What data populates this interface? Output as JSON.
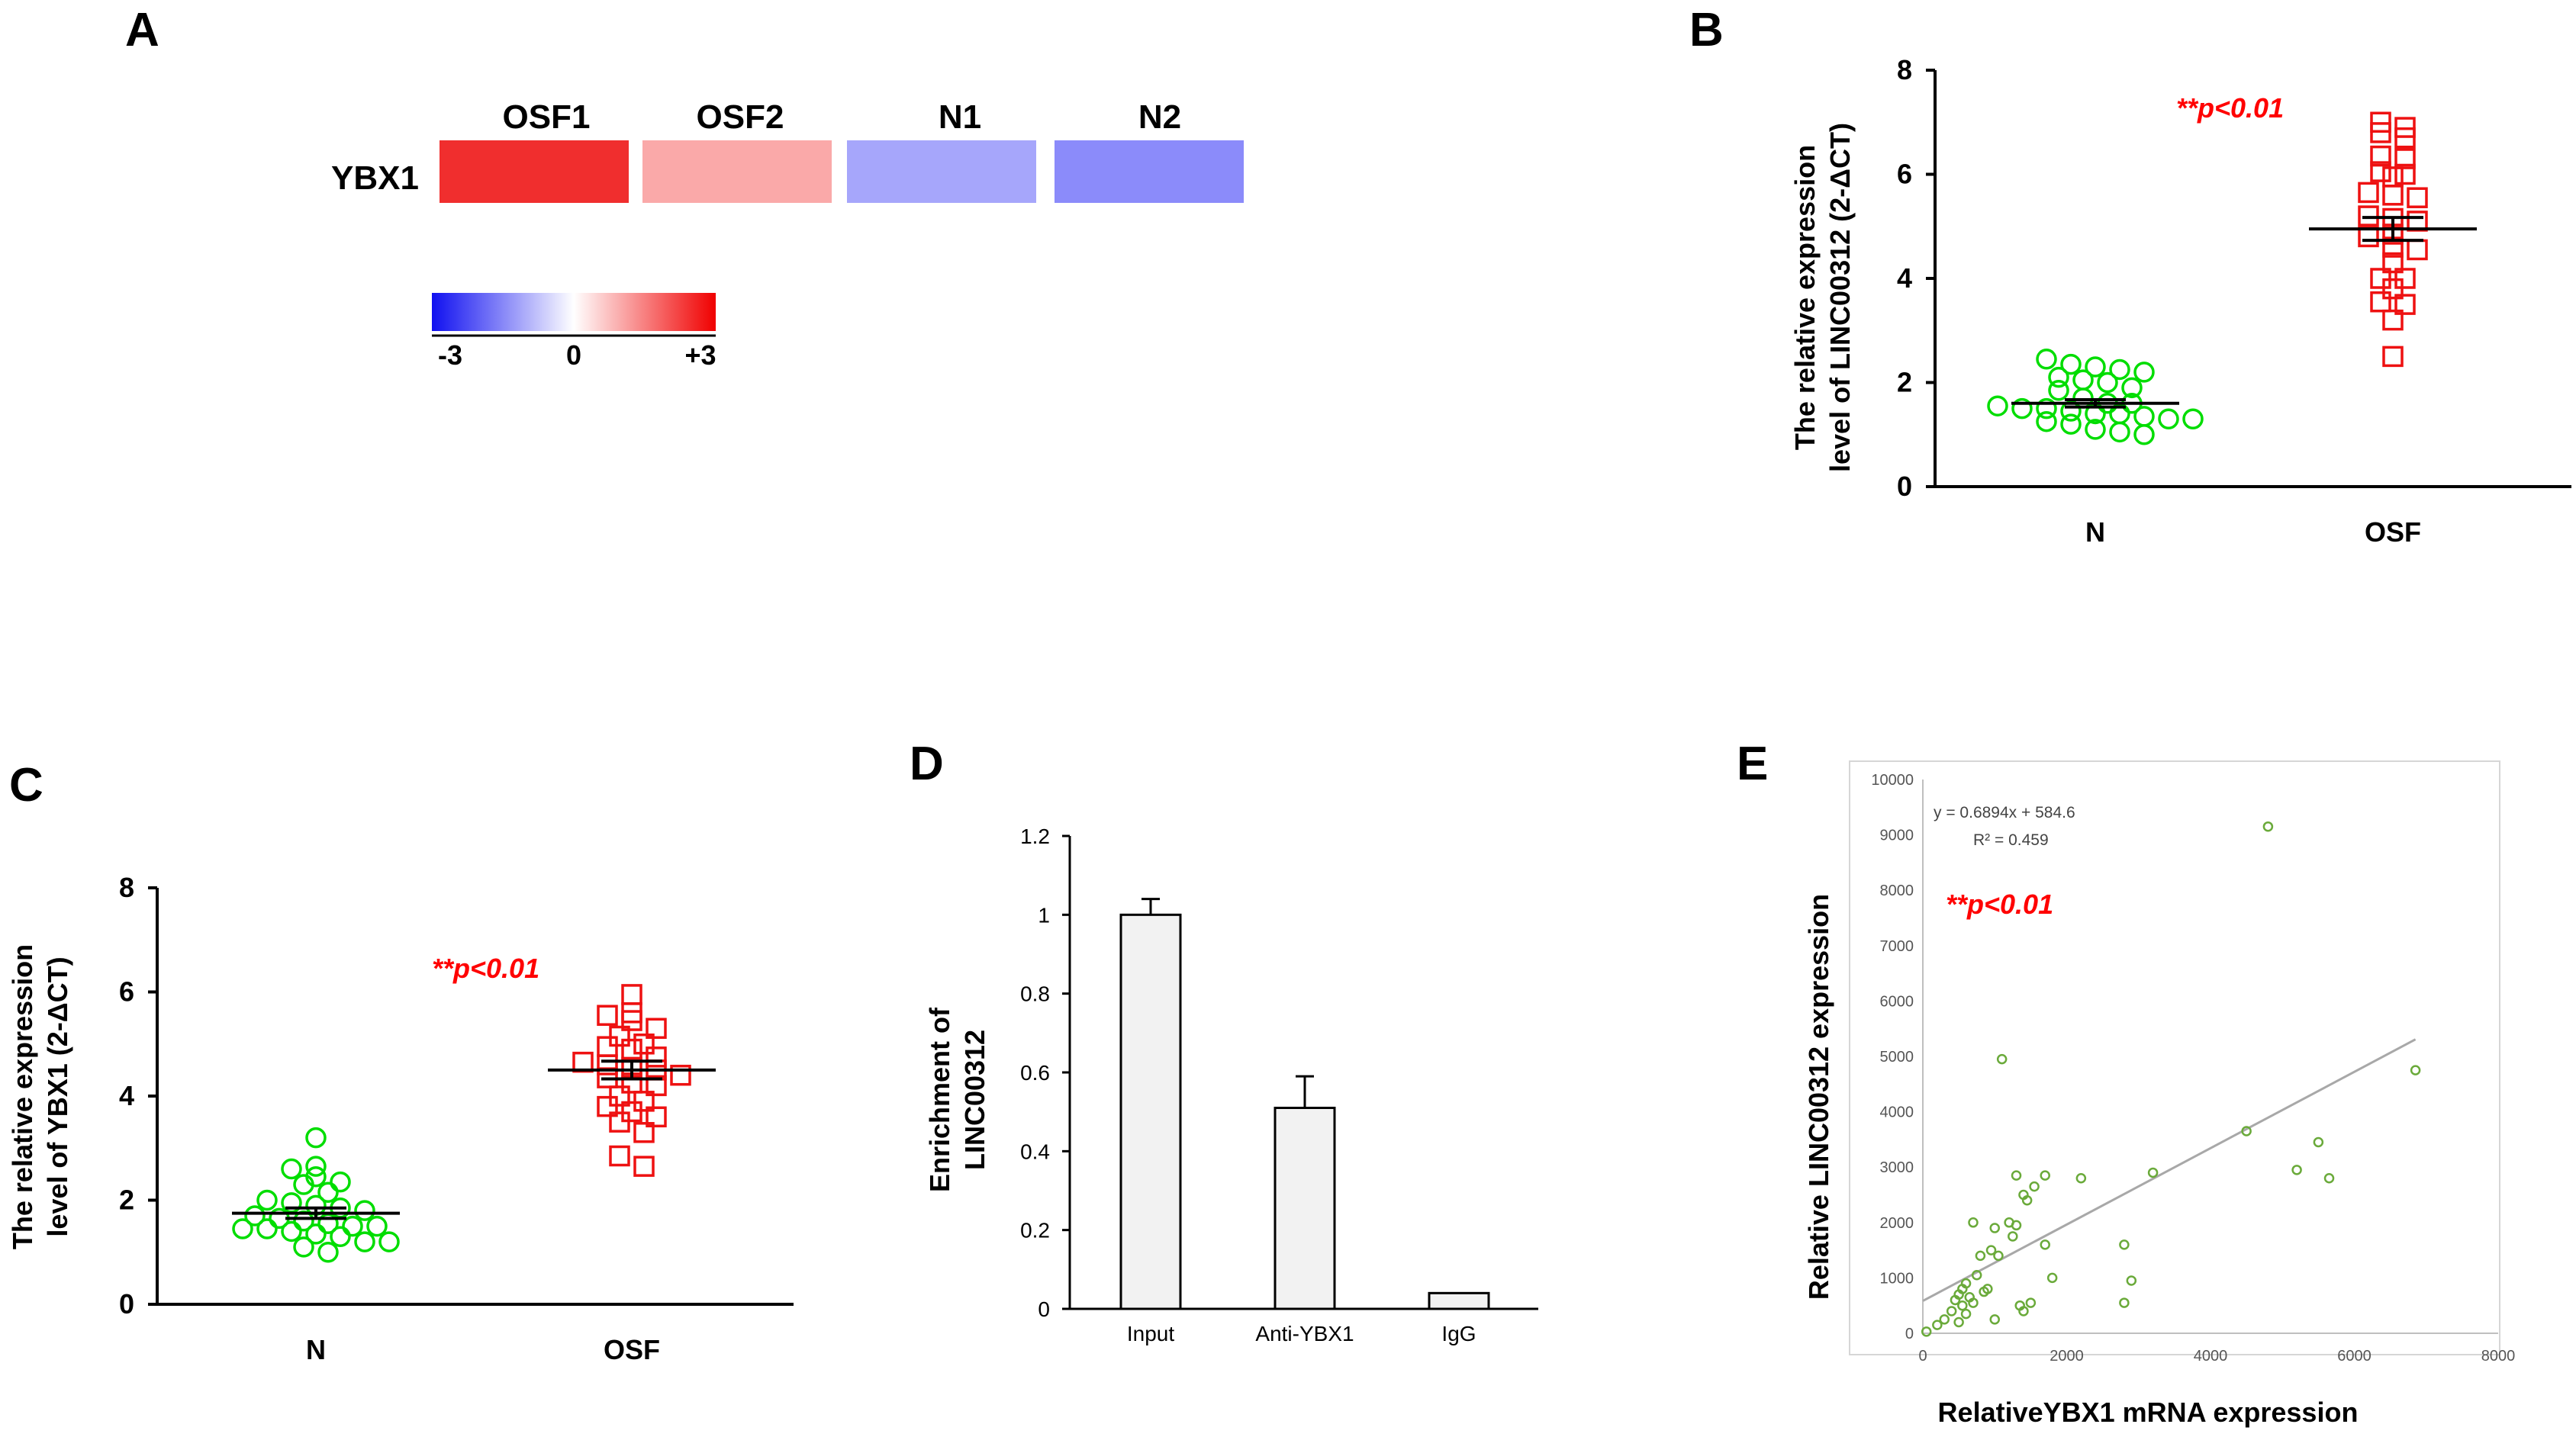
{
  "chart_data": [
    {
      "panel": "A",
      "type": "heatmap",
      "row_label": "YBX1",
      "columns": [
        "OSF1",
        "OSF2",
        "N1",
        "N2"
      ],
      "values": [
        2.7,
        1.1,
        -1.3,
        -1.6
      ],
      "colors": [
        "#f02e2e",
        "#faa9a9",
        "#a6a6fb",
        "#8b8bfa"
      ],
      "scale": {
        "min_label": "-3",
        "mid_label": "0",
        "max_label": "+3",
        "min_color": "#1010f0",
        "mid_color": "#ffffff",
        "max_color": "#f00000"
      }
    },
    {
      "panel": "B",
      "type": "scatter",
      "ylabel_line1": "The relative expression",
      "ylabel_line2": "level of LINC00312 (2-ΔCT)",
      "categories": [
        "N",
        "OSF"
      ],
      "yticks": [
        "0",
        "2",
        "4",
        "6",
        "8"
      ],
      "ylim": [
        0,
        8
      ],
      "annotation": "**p<0.01",
      "series": [
        {
          "name": "N",
          "marker": "circle",
          "color": "#00dd00",
          "mean": 1.6,
          "sem": 0.07,
          "values": [
            2.45,
            2.35,
            2.3,
            2.25,
            2.2,
            2.1,
            2.05,
            2.0,
            1.9,
            1.85,
            1.7,
            1.6,
            1.6,
            1.55,
            1.5,
            1.5,
            1.45,
            1.4,
            1.4,
            1.35,
            1.3,
            1.3,
            1.25,
            1.2,
            1.1,
            1.05,
            1.0
          ]
        },
        {
          "name": "OSF",
          "marker": "square",
          "color": "#ee1111",
          "mean": 4.95,
          "sem": 0.22,
          "values": [
            7.0,
            6.9,
            6.8,
            6.7,
            6.35,
            6.3,
            6.05,
            6.0,
            5.95,
            5.65,
            5.6,
            5.55,
            5.2,
            5.15,
            5.1,
            4.85,
            4.8,
            4.6,
            4.55,
            4.3,
            4.0,
            4.0,
            3.8,
            3.55,
            3.5,
            3.2,
            2.5
          ]
        }
      ]
    },
    {
      "panel": "C",
      "type": "scatter",
      "ylabel_line1": "The relative expression",
      "ylabel_line2": "level of YBX1 (2-ΔCT)",
      "categories": [
        "N",
        "OSF"
      ],
      "yticks": [
        "0",
        "2",
        "4",
        "6",
        "8"
      ],
      "ylim": [
        0,
        8
      ],
      "annotation": "**p<0.01",
      "series": [
        {
          "name": "N",
          "marker": "circle",
          "color": "#00dd00",
          "mean": 1.75,
          "sem": 0.1,
          "values": [
            3.2,
            2.65,
            2.6,
            2.45,
            2.35,
            2.3,
            2.15,
            2.0,
            1.95,
            1.9,
            1.85,
            1.8,
            1.7,
            1.65,
            1.6,
            1.55,
            1.5,
            1.5,
            1.45,
            1.45,
            1.4,
            1.35,
            1.3,
            1.2,
            1.2,
            1.1,
            1.0
          ]
        },
        {
          "name": "OSF",
          "marker": "square",
          "color": "#ee1111",
          "mean": 4.5,
          "sem": 0.17,
          "values": [
            5.95,
            5.6,
            5.55,
            5.45,
            5.3,
            5.15,
            5.0,
            4.95,
            4.9,
            4.75,
            4.65,
            4.6,
            4.55,
            4.5,
            4.4,
            4.35,
            4.25,
            4.2,
            4.0,
            3.9,
            3.8,
            3.7,
            3.6,
            3.5,
            3.3,
            2.85,
            2.65
          ]
        }
      ]
    },
    {
      "panel": "D",
      "type": "bar",
      "ylabel_line1": "Enrichment of",
      "ylabel_line2": "LINC00312",
      "categories": [
        "Input",
        "Anti-YBX1",
        "IgG"
      ],
      "values": [
        1.0,
        0.51,
        0.04
      ],
      "errors": [
        0.04,
        0.08,
        0.0
      ],
      "yticks": [
        "0",
        "0.2",
        "0.4",
        "0.6",
        "0.8",
        "1",
        "1.2"
      ],
      "ylim": [
        0,
        1.2
      ]
    },
    {
      "panel": "E",
      "type": "scatter",
      "xlabel": "RelativeYBX1 mRNA expression",
      "ylabel": "Relative LINC00312 expression",
      "xticks": [
        "0",
        "2000",
        "4000",
        "6000",
        "8000"
      ],
      "yticks": [
        "0",
        "1000",
        "2000",
        "3000",
        "4000",
        "5000",
        "6000",
        "7000",
        "8000",
        "9000",
        "10000"
      ],
      "xlim": [
        0,
        8000
      ],
      "ylim": [
        0,
        10000
      ],
      "equation": "y = 0.6894x + 584.6",
      "r_squared": "R² = 0.459",
      "annotation": "**p<0.01",
      "trendline": {
        "slope": 0.6894,
        "intercept": 584.6,
        "x_range": [
          0,
          6850
        ]
      },
      "color": "#6aaa3a",
      "points": [
        [
          50,
          30
        ],
        [
          200,
          150
        ],
        [
          300,
          250
        ],
        [
          400,
          400
        ],
        [
          450,
          600
        ],
        [
          500,
          200
        ],
        [
          500,
          700
        ],
        [
          550,
          800
        ],
        [
          550,
          500
        ],
        [
          600,
          900
        ],
        [
          600,
          350
        ],
        [
          650,
          650
        ],
        [
          700,
          550
        ],
        [
          700,
          2000
        ],
        [
          750,
          1050
        ],
        [
          800,
          1400
        ],
        [
          850,
          750
        ],
        [
          900,
          800
        ],
        [
          950,
          1500
        ],
        [
          1000,
          250
        ],
        [
          1000,
          1900
        ],
        [
          1050,
          1400
        ],
        [
          1100,
          4950
        ],
        [
          1200,
          2000
        ],
        [
          1250,
          1750
        ],
        [
          1300,
          2850
        ],
        [
          1300,
          1950
        ],
        [
          1350,
          500
        ],
        [
          1400,
          2500
        ],
        [
          1400,
          400
        ],
        [
          1450,
          2400
        ],
        [
          1500,
          550
        ],
        [
          1550,
          2650
        ],
        [
          1700,
          2850
        ],
        [
          1700,
          1600
        ],
        [
          1800,
          1000
        ],
        [
          2200,
          2800
        ],
        [
          2800,
          1600
        ],
        [
          2800,
          550
        ],
        [
          2900,
          950
        ],
        [
          3200,
          2900
        ],
        [
          4500,
          3650
        ],
        [
          4800,
          9150
        ],
        [
          5200,
          2950
        ],
        [
          5500,
          3450
        ],
        [
          5650,
          2800
        ],
        [
          6850,
          4750
        ]
      ]
    }
  ],
  "panels": {
    "A": "A",
    "B": "B",
    "C": "C",
    "D": "D",
    "E": "E"
  }
}
